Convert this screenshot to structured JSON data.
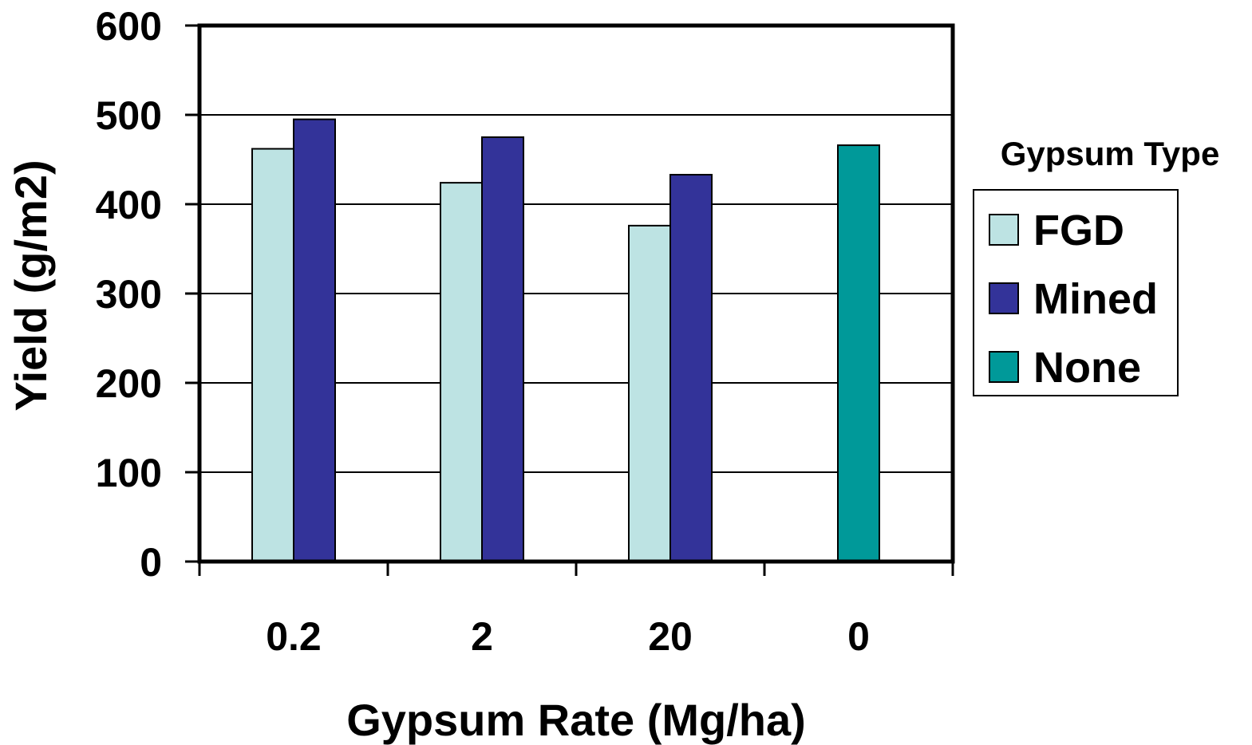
{
  "chart_data": {
    "type": "bar",
    "title": "",
    "xlabel": "Gypsum Rate (Mg/ha)",
    "ylabel": "Yield (g/m2)",
    "ylim": [
      0,
      600
    ],
    "yticks": [
      0,
      100,
      200,
      300,
      400,
      500,
      600
    ],
    "yticklabels": [
      "0",
      "100",
      "200",
      "300",
      "400",
      "500",
      "600"
    ],
    "grid": true,
    "categories": [
      "0.2",
      "2",
      "20",
      "0"
    ],
    "series": [
      {
        "name": "FGD",
        "values": [
          462,
          424,
          376,
          null
        ],
        "color": "#bde3e3"
      },
      {
        "name": "Mined",
        "values": [
          495,
          475,
          433,
          null
        ],
        "color": "#333399"
      },
      {
        "name": "None",
        "values": [
          null,
          null,
          null,
          466
        ],
        "color": "#009999"
      }
    ],
    "legend": {
      "title": "Gypsum Type",
      "position": "right"
    }
  }
}
